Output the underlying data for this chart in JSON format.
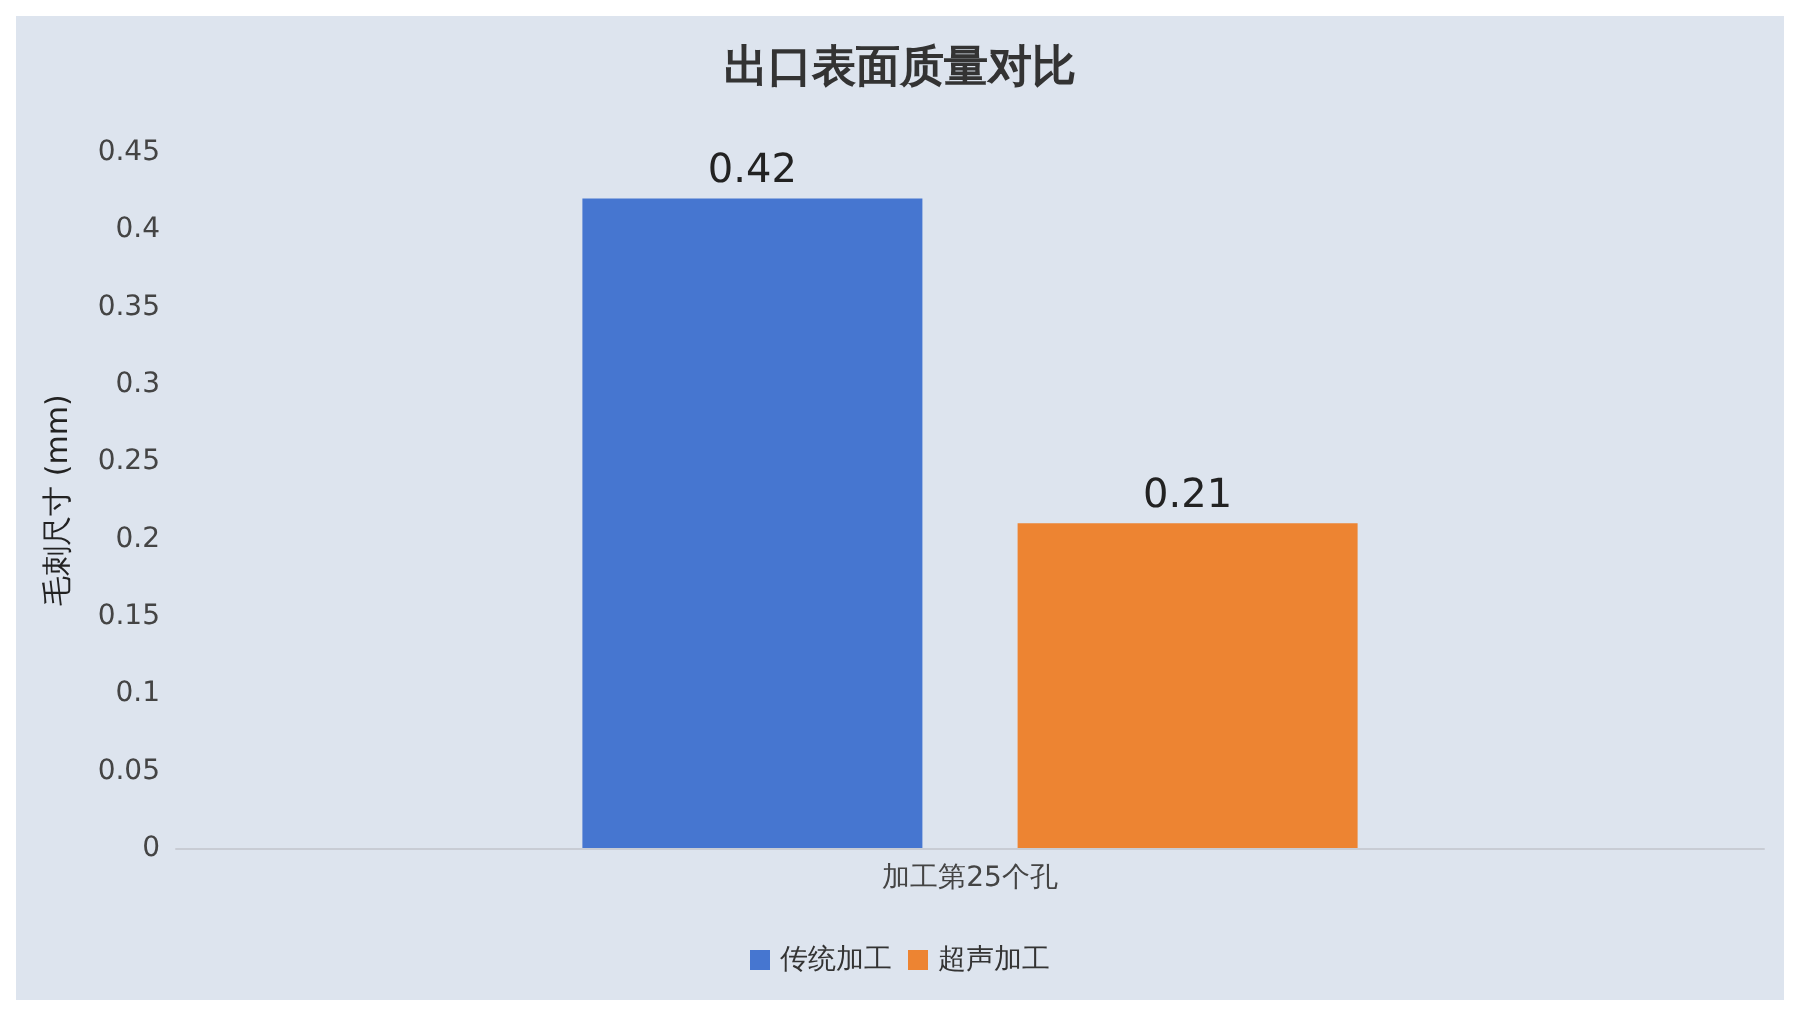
{
  "chart_data": {
    "type": "bar",
    "title": "出口表面质量对比",
    "ylabel": "毛刺尺寸 (mm)",
    "categories": [
      "加工第25个孔"
    ],
    "series": [
      {
        "name": "传统加工",
        "color": "#4676d0",
        "values": [
          0.42
        ]
      },
      {
        "name": "超声加工",
        "color": "#ed8432",
        "values": [
          0.21
        ]
      }
    ],
    "ylim": [
      0,
      0.45
    ],
    "yticks": [
      0,
      0.05,
      0.1,
      0.15,
      0.2,
      0.25,
      0.3,
      0.35,
      0.4,
      0.45
    ],
    "grid": false,
    "legend": "bottom",
    "data_labels": true
  }
}
